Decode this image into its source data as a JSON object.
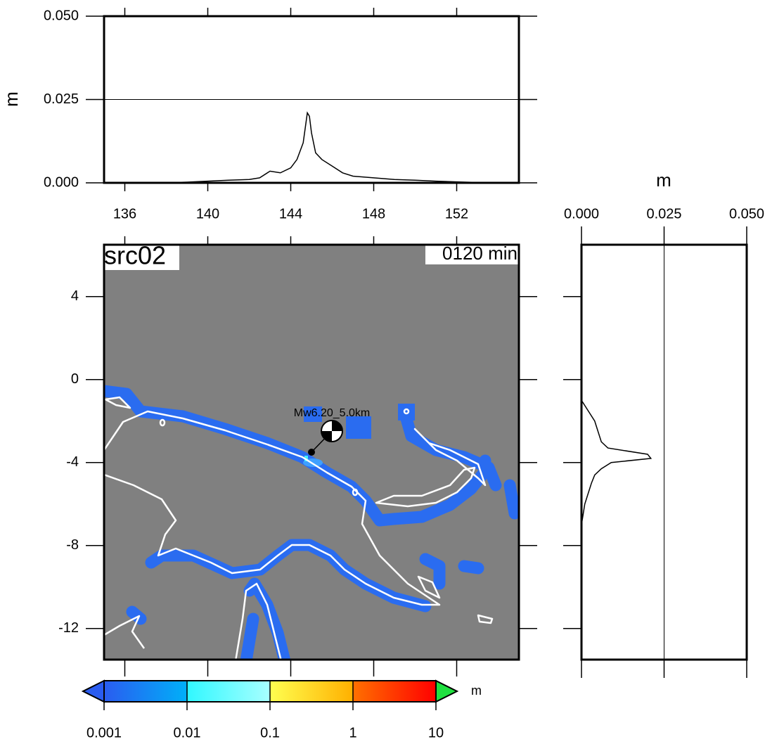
{
  "chart_data": [
    {
      "type": "line",
      "y_label": "m",
      "x": [
        135,
        136,
        137,
        138,
        139,
        140,
        141,
        142,
        142.5,
        143,
        143.5,
        144,
        144.3,
        144.6,
        144.8,
        144.9,
        145,
        145.2,
        145.5,
        146,
        146.5,
        147,
        148,
        149,
        150,
        151,
        152,
        153,
        154,
        155
      ],
      "values": [
        0,
        0,
        0,
        0,
        0.0002,
        0.0005,
        0.0008,
        0.001,
        0.0015,
        0.0035,
        0.003,
        0.0045,
        0.007,
        0.012,
        0.021,
        0.02,
        0.015,
        0.009,
        0.007,
        0.005,
        0.003,
        0.002,
        0.0015,
        0.001,
        0.0008,
        0.0005,
        0.0003,
        0.0001,
        0,
        0
      ],
      "color": "#000000",
      "xlim": [
        135,
        155
      ],
      "xticks": [
        136,
        140,
        144,
        148,
        152
      ],
      "ylim": [
        0,
        0.05
      ],
      "yticks": [
        {
          "value": 0,
          "label": "0.000"
        },
        {
          "value": 0.025,
          "label": "0.025"
        },
        {
          "value": 0.05,
          "label": "0.050"
        }
      ],
      "grid": true
    },
    {
      "type": "line",
      "orientation": "vertical",
      "x_label": "m",
      "lat": [
        -1,
        -1.5,
        -2,
        -2.5,
        -3,
        -3.3,
        -3.6,
        -3.8,
        -4,
        -4.3,
        -4.6,
        -5,
        -5.5,
        -6,
        -6.5,
        -7
      ],
      "values": [
        0,
        0.002,
        0.004,
        0.005,
        0.006,
        0.008,
        0.02,
        0.021,
        0.009,
        0.006,
        0.004,
        0.003,
        0.002,
        0.001,
        0.0005,
        0
      ],
      "color": "#000000",
      "xlim": [
        0,
        0.05
      ],
      "xticks": [
        {
          "value": 0,
          "label": "0.000"
        },
        {
          "value": 0.025,
          "label": "0.025"
        },
        {
          "value": 0.05,
          "label": "0.050"
        }
      ],
      "ylim": [
        -13.5,
        6.5
      ],
      "grid": true
    }
  ],
  "map": {
    "label": "src02",
    "time": "0120 min",
    "event_label": "Mw6.20_5.0km",
    "xlim": [
      135,
      155
    ],
    "ylim": [
      -13.5,
      6.5
    ],
    "yticks": [
      4,
      0,
      -4,
      -8,
      -12
    ],
    "colorbar": {
      "unit": "m",
      "log": true,
      "lim": [
        0.001,
        10
      ],
      "ticks": [
        0.001,
        0.01,
        0.1,
        1,
        10
      ],
      "colors": [
        [
          "#2a5cf0",
          "#00b0f8"
        ],
        [
          "#30f8ff",
          "#a8ffff"
        ],
        [
          "#ffff50",
          "#ffb000"
        ],
        [
          "#ff7000",
          "#ff0000"
        ]
      ],
      "below_color": "#2a5cf0",
      "above_color": "#20e040"
    }
  }
}
